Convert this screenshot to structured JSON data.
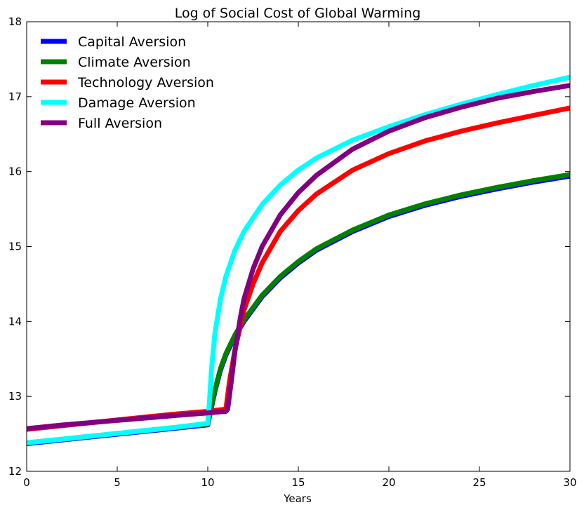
{
  "chart_data": {
    "type": "line",
    "title": "Log of Social Cost of Global Warming",
    "xlabel": "Years",
    "ylabel": "",
    "xlim": [
      0,
      30
    ],
    "ylim": [
      12,
      18
    ],
    "x_ticks": [
      "0",
      "5",
      "10",
      "15",
      "20",
      "25",
      "30"
    ],
    "y_ticks": [
      "12",
      "13",
      "14",
      "15",
      "16",
      "17",
      "18"
    ],
    "grid": false,
    "legend_position": "top-left",
    "series": [
      {
        "name": "Capital Aversion",
        "color": "#0000ff",
        "x": [
          0,
          2,
          4,
          6,
          8,
          10,
          10.2,
          10.4,
          10.7,
          11,
          11.5,
          12,
          13,
          14,
          15,
          16,
          18,
          20,
          22,
          24,
          26,
          28,
          30
        ],
        "y": [
          12.37,
          12.42,
          12.47,
          12.52,
          12.57,
          12.62,
          12.85,
          13.07,
          13.35,
          13.55,
          13.8,
          14.0,
          14.33,
          14.58,
          14.78,
          14.95,
          15.2,
          15.4,
          15.55,
          15.67,
          15.77,
          15.86,
          15.94
        ]
      },
      {
        "name": "Climate Aversion",
        "color": "#008000",
        "x": [
          0,
          2,
          4,
          6,
          8,
          10,
          10.2,
          10.4,
          10.7,
          11,
          11.5,
          12,
          13,
          14,
          15,
          16,
          18,
          20,
          22,
          24,
          26,
          28,
          30
        ],
        "y": [
          12.38,
          12.43,
          12.48,
          12.53,
          12.58,
          12.63,
          12.87,
          13.09,
          13.37,
          13.57,
          13.82,
          14.02,
          14.35,
          14.6,
          14.8,
          14.97,
          15.22,
          15.42,
          15.57,
          15.69,
          15.79,
          15.88,
          15.96
        ]
      },
      {
        "name": "Technology Aversion",
        "color": "#ff0000",
        "x": [
          0,
          2,
          4,
          6,
          8,
          10,
          11,
          11.2,
          11.5,
          12,
          12.5,
          13,
          14,
          15,
          16,
          18,
          20,
          22,
          24,
          26,
          28,
          30
        ],
        "y": [
          12.56,
          12.61,
          12.66,
          12.71,
          12.76,
          12.8,
          12.83,
          13.2,
          13.62,
          14.15,
          14.5,
          14.78,
          15.2,
          15.48,
          15.7,
          16.02,
          16.24,
          16.41,
          16.54,
          16.65,
          16.75,
          16.85
        ]
      },
      {
        "name": "Damage Aversion",
        "color": "#00ffff",
        "x": [
          0,
          2,
          4,
          6,
          8,
          10,
          10.1,
          10.2,
          10.4,
          10.7,
          11,
          11.5,
          12,
          13,
          14,
          15,
          16,
          18,
          20,
          22,
          24,
          26,
          28,
          30
        ],
        "y": [
          12.38,
          12.43,
          12.48,
          12.53,
          12.58,
          12.64,
          12.95,
          13.35,
          13.85,
          14.3,
          14.6,
          14.95,
          15.2,
          15.56,
          15.82,
          16.02,
          16.18,
          16.42,
          16.6,
          16.76,
          16.9,
          17.03,
          17.15,
          17.26
        ]
      },
      {
        "name": "Full Aversion",
        "color": "#800080",
        "x": [
          0,
          2,
          4,
          6,
          8,
          10,
          11,
          11.1,
          11.3,
          11.5,
          11.8,
          12,
          12.5,
          13,
          14,
          15,
          16,
          18,
          20,
          22,
          24,
          26,
          28,
          30
        ],
        "y": [
          12.57,
          12.62,
          12.66,
          12.7,
          12.74,
          12.78,
          12.8,
          12.83,
          13.2,
          13.6,
          14.05,
          14.3,
          14.7,
          15.0,
          15.42,
          15.72,
          15.95,
          16.3,
          16.54,
          16.72,
          16.86,
          16.98,
          17.07,
          17.15
        ]
      }
    ]
  }
}
